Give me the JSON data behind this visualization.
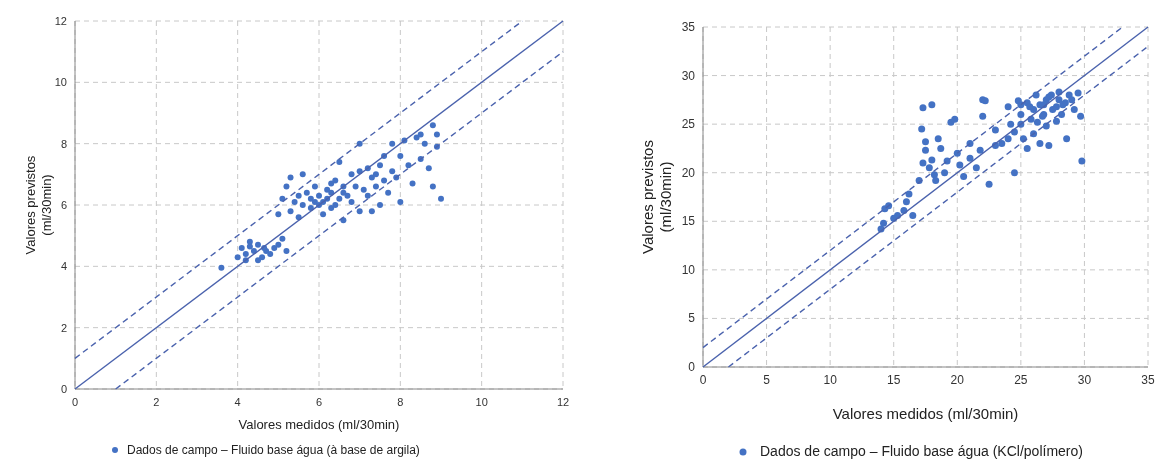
{
  "chart_data": [
    {
      "type": "scatter",
      "xlabel": "Valores medidos (ml/30min)",
      "ylabel": "Valores previstos (ml/30min)",
      "xlim": [
        0,
        12
      ],
      "ylim": [
        0,
        12
      ],
      "xticks": [
        0,
        2,
        4,
        6,
        8,
        10,
        12
      ],
      "yticks": [
        0,
        2,
        4,
        6,
        8,
        10,
        12
      ],
      "grid": true,
      "legend": "bottom",
      "series": [
        {
          "name": "Dados de campo – Fluido base água (à base de argila)",
          "color": "#4472c4",
          "marker": "circle",
          "x": [
            3.6,
            4.0,
            4.1,
            4.2,
            4.3,
            4.4,
            4.5,
            4.6,
            4.7,
            4.8,
            4.9,
            5.0,
            5.1,
            4.2,
            4.5,
            5.2,
            4.3,
            4.65,
            5.0,
            5.1,
            5.2,
            5.3,
            5.3,
            5.4,
            5.5,
            5.5,
            5.6,
            5.6,
            5.7,
            5.8,
            5.8,
            5.9,
            6.0,
            6.0,
            6.1,
            6.1,
            6.2,
            6.2,
            6.3,
            6.3,
            6.4,
            6.4,
            6.5,
            6.5,
            6.6,
            6.6,
            6.7,
            6.8,
            6.8,
            6.9,
            7.0,
            7.0,
            7.1,
            7.2,
            7.2,
            7.3,
            7.3,
            7.4,
            7.4,
            7.5,
            7.5,
            7.6,
            7.6,
            7.7,
            7.8,
            7.8,
            7.9,
            8.0,
            8.0,
            8.1,
            8.2,
            8.3,
            8.4,
            8.5,
            8.6,
            8.7,
            8.8,
            8.8,
            8.9,
            9.0,
            8.9,
            8.5,
            7.0,
            6.3,
            5.9,
            6.6
          ],
          "values": [
            3.95,
            4.3,
            4.6,
            4.4,
            4.8,
            4.5,
            4.7,
            4.3,
            4.5,
            4.4,
            4.6,
            4.7,
            4.9,
            4.2,
            4.2,
            4.5,
            4.65,
            4.6,
            5.7,
            6.2,
            6.6,
            5.8,
            6.9,
            6.1,
            6.3,
            5.6,
            6.0,
            7.0,
            6.4,
            5.9,
            6.2,
            6.6,
            6.0,
            6.3,
            6.1,
            5.7,
            6.5,
            6.2,
            5.9,
            6.4,
            6.0,
            6.8,
            6.2,
            7.4,
            6.6,
            5.5,
            6.3,
            7.0,
            6.1,
            6.6,
            7.1,
            5.8,
            6.5,
            7.2,
            6.3,
            6.9,
            5.8,
            7.0,
            6.6,
            7.3,
            6.0,
            6.8,
            7.6,
            6.4,
            7.1,
            8.0,
            6.9,
            7.6,
            6.1,
            8.1,
            7.3,
            6.7,
            8.2,
            7.5,
            8.0,
            7.2,
            8.6,
            6.6,
            8.3,
            6.2,
            7.9,
            8.3,
            8.0,
            6.7,
            6.1,
            6.4
          ]
        },
        {
          "type": "line",
          "color": "#4a62ad",
          "line_style": "solid",
          "x": [
            0,
            12
          ],
          "values": [
            0,
            12
          ]
        },
        {
          "type": "line",
          "color": "#4a62ad",
          "line_style": "dashed",
          "x": [
            0,
            11
          ],
          "values": [
            1,
            12
          ]
        },
        {
          "type": "line",
          "color": "#4a62ad",
          "line_style": "dashed",
          "x": [
            1,
            12
          ],
          "values": [
            0,
            11
          ]
        }
      ]
    },
    {
      "type": "scatter",
      "xlabel": "Valores medidos (ml/30min)",
      "ylabel": "Valores previstos (ml/30min)",
      "xlim": [
        0,
        35
      ],
      "ylim": [
        0,
        35
      ],
      "xticks": [
        0,
        5,
        10,
        15,
        20,
        25,
        30,
        35
      ],
      "yticks": [
        0,
        5,
        10,
        15,
        20,
        25,
        30,
        35
      ],
      "grid": true,
      "legend": "bottom",
      "series": [
        {
          "name": "Dados de campo – Fluido base água (KCl/polímero)",
          "color": "#4472c4",
          "marker": "circle",
          "x": [
            14,
            14.2,
            14.3,
            14.6,
            15,
            15.3,
            15.8,
            16,
            16.2,
            16.5,
            17,
            17.2,
            17.3,
            17.3,
            17.5,
            17.5,
            17.8,
            18,
            18,
            18.2,
            18.3,
            18.5,
            18.7,
            19,
            19.2,
            19.5,
            19.8,
            20,
            20.2,
            20.5,
            21,
            21,
            21.5,
            21.8,
            22,
            22.2,
            22.5,
            22,
            23,
            23,
            23.5,
            24,
            24,
            24.2,
            24.5,
            24.5,
            25,
            25,
            25,
            25.2,
            25.5,
            25.5,
            25.8,
            26,
            26,
            26.2,
            26.3,
            26.5,
            26.5,
            26.8,
            27,
            27,
            27.2,
            27.4,
            27.5,
            27.8,
            28,
            28,
            28.2,
            28.5,
            28.6,
            28.8,
            29,
            29.2,
            29.5,
            29.7,
            29.8,
            27.2,
            26.7,
            25.7,
            28.3,
            24.8,
            26.8,
            27.8
          ],
          "values": [
            14.2,
            14.8,
            16.3,
            16.6,
            15.3,
            15.6,
            16.1,
            17,
            17.8,
            15.6,
            19.2,
            24.5,
            26.7,
            21,
            22.3,
            23.2,
            20.5,
            27,
            21.3,
            19.8,
            19.2,
            23.5,
            22.5,
            20,
            21.2,
            25.2,
            25.5,
            22,
            20.8,
            19.6,
            21.5,
            23,
            20.5,
            22.3,
            27.5,
            27.4,
            18.8,
            25.8,
            22.8,
            24.4,
            23,
            23.5,
            26.8,
            25,
            24.2,
            20,
            27,
            26,
            25,
            23.5,
            22.5,
            27.2,
            25.5,
            26.5,
            24,
            28,
            25.2,
            27,
            23,
            26,
            27.5,
            24.8,
            22.8,
            28,
            26.5,
            25.3,
            27.5,
            28.3,
            26,
            27.2,
            23.5,
            28,
            27.5,
            26.5,
            28.2,
            25.8,
            21.2,
            27.8,
            25.8,
            26.8,
            27,
            27.4,
            27,
            26.8
          ]
        },
        {
          "type": "line",
          "color": "#4a62ad",
          "line_style": "solid",
          "x": [
            0,
            35
          ],
          "values": [
            0,
            35
          ]
        },
        {
          "type": "line",
          "color": "#4a62ad",
          "line_style": "dashed",
          "x": [
            0,
            33
          ],
          "values": [
            2,
            35
          ]
        },
        {
          "type": "line",
          "color": "#4a62ad",
          "line_style": "dashed",
          "x": [
            2,
            35
          ],
          "values": [
            0,
            33
          ]
        }
      ]
    }
  ]
}
